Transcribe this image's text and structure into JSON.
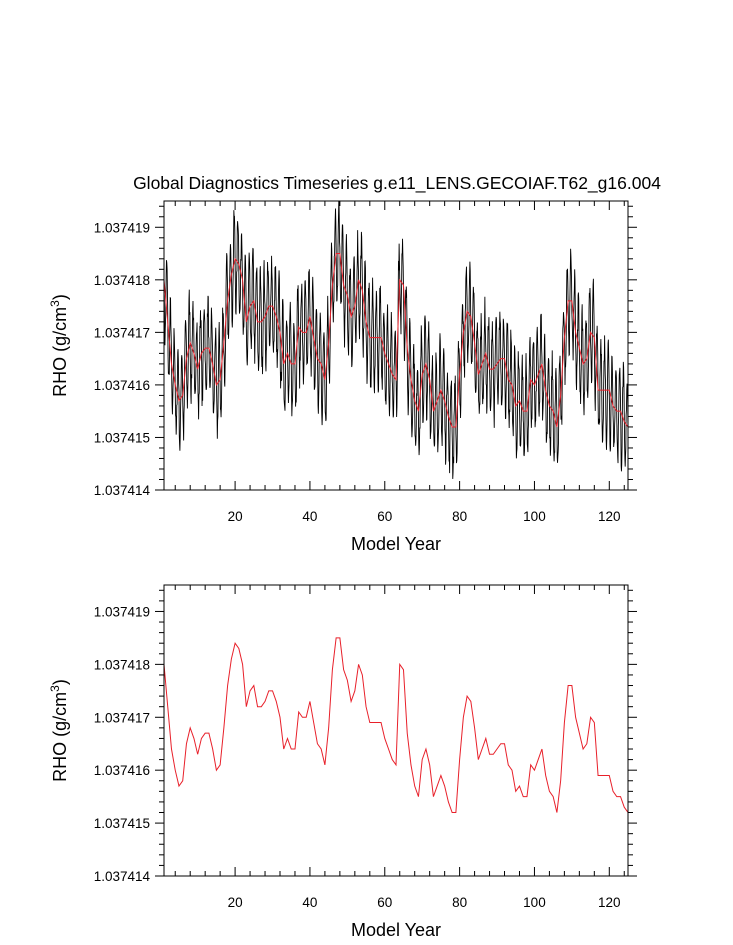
{
  "figure": {
    "title": "Global Diagnostics Timeseries g.e11_LENS.GECOIAF.T62_g16.004"
  },
  "colors": {
    "monthly": "#000000",
    "annual": "#e8202a",
    "frame": "#000000"
  },
  "chart_data": [
    {
      "type": "line",
      "title": "Global Diagnostics Timeseries g.e11_LENS.GECOIAF.T62_g16.004",
      "xlabel": "Model Year",
      "ylabel_main": "RHO (g/cm",
      "ylabel_sup": "3",
      "ylabel_close": ")",
      "xlim": [
        1,
        125
      ],
      "ylim": [
        1.037414,
        1.0374195
      ],
      "xticks": [
        20,
        40,
        60,
        80,
        100,
        120
      ],
      "yticks": [
        1.037414,
        1.037415,
        1.037416,
        1.037417,
        1.037418,
        1.037419
      ],
      "ytick_labels": [
        "1.037414",
        "1.037415",
        "1.037416",
        "1.037417",
        "1.037418",
        "1.037419"
      ],
      "grid": false,
      "series": [
        {
          "name": "monthly",
          "points_per_year": 12,
          "seasonal_amplitude": 9e-07,
          "noise_amplitude": 2.5e-07,
          "note": "monthly oscillation around the annual mean"
        },
        {
          "name": "annual",
          "ref": "annual"
        }
      ]
    },
    {
      "type": "line",
      "title": "",
      "xlabel": "Model Year",
      "ylabel_main": "RHO (g/cm",
      "ylabel_sup": "3",
      "ylabel_close": ")",
      "xlim": [
        1,
        125
      ],
      "ylim": [
        1.037414,
        1.0374195
      ],
      "xticks": [
        20,
        40,
        60,
        80,
        100,
        120
      ],
      "yticks": [
        1.037414,
        1.037415,
        1.037416,
        1.037417,
        1.037418,
        1.037419
      ],
      "ytick_labels": [
        "1.037414",
        "1.037415",
        "1.037416",
        "1.037417",
        "1.037418",
        "1.037419"
      ],
      "grid": false,
      "series": [
        {
          "name": "annual",
          "ref": "annual"
        }
      ]
    }
  ],
  "annual": {
    "x_start": 1,
    "values": [
      1.037418,
      1.0374172,
      1.0374164,
      1.037416,
      1.0374157,
      1.0374158,
      1.0374165,
      1.0374168,
      1.0374166,
      1.0374163,
      1.0374166,
      1.0374167,
      1.0374167,
      1.0374164,
      1.037416,
      1.0374161,
      1.0374168,
      1.0374176,
      1.0374181,
      1.0374184,
      1.0374183,
      1.037418,
      1.0374172,
      1.0374175,
      1.0374176,
      1.0374172,
      1.0374172,
      1.0374173,
      1.0374175,
      1.0374175,
      1.0374173,
      1.037417,
      1.0374164,
      1.0374166,
      1.0374164,
      1.0374164,
      1.0374171,
      1.037417,
      1.037417,
      1.0374173,
      1.0374169,
      1.0374165,
      1.0374164,
      1.0374161,
      1.0374168,
      1.0374179,
      1.0374185,
      1.0374185,
      1.0374179,
      1.0374177,
      1.0374173,
      1.0374175,
      1.037418,
      1.0374178,
      1.0374172,
      1.0374169,
      1.0374169,
      1.0374169,
      1.0374169,
      1.0374166,
      1.0374164,
      1.0374162,
      1.0374161,
      1.037418,
      1.0374179,
      1.0374167,
      1.0374161,
      1.0374157,
      1.0374155,
      1.0374162,
      1.0374164,
      1.0374161,
      1.0374155,
      1.0374157,
      1.0374159,
      1.0374157,
      1.0374154,
      1.0374152,
      1.0374152,
      1.0374162,
      1.037417,
      1.0374174,
      1.0374173,
      1.0374168,
      1.0374162,
      1.0374164,
      1.0374166,
      1.0374163,
      1.0374163,
      1.0374164,
      1.0374165,
      1.0374165,
      1.0374161,
      1.037416,
      1.0374156,
      1.0374157,
      1.0374155,
      1.0374155,
      1.0374161,
      1.037416,
      1.0374162,
      1.0374164,
      1.0374159,
      1.0374156,
      1.0374155,
      1.0374152,
      1.0374158,
      1.0374169,
      1.0374176,
      1.0374176,
      1.037417,
      1.0374167,
      1.0374164,
      1.0374165,
      1.037417,
      1.0374169,
      1.0374159,
      1.0374159,
      1.0374159,
      1.0374159,
      1.0374156,
      1.0374155,
      1.0374155,
      1.0374153,
      1.0374152
    ]
  }
}
